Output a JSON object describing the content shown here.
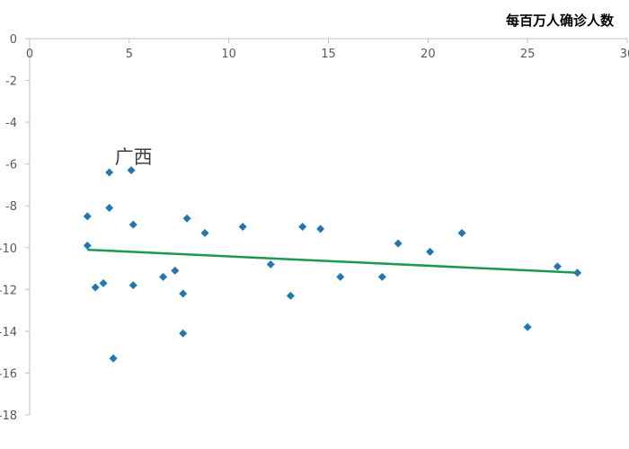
{
  "chart_data": {
    "type": "scatter",
    "xlabel": "每百万人确诊人数",
    "ylabel": "",
    "title": "",
    "xlim": [
      0,
      30
    ],
    "ylim": [
      -18,
      0
    ],
    "x_ticks": [
      "0",
      "5",
      "10",
      "15",
      "20",
      "25",
      "30"
    ],
    "y_ticks": [
      "0",
      "-2",
      "-4",
      "-6",
      "-8",
      "-10",
      "-12",
      "-14",
      "-16",
      "-18"
    ],
    "grid": false,
    "x_axis_position": "top",
    "marker": "diamond",
    "marker_color": "#1f77b4",
    "trendline_color": "#1a9a50",
    "points": [
      {
        "x": 2.9,
        "y": -8.5
      },
      {
        "x": 2.9,
        "y": -9.9
      },
      {
        "x": 3.3,
        "y": -11.9
      },
      {
        "x": 3.7,
        "y": -11.7
      },
      {
        "x": 4.0,
        "y": -6.4
      },
      {
        "x": 4.0,
        "y": -8.1
      },
      {
        "x": 4.2,
        "y": -15.3
      },
      {
        "x": 5.1,
        "y": -6.3
      },
      {
        "x": 5.2,
        "y": -8.9
      },
      {
        "x": 5.2,
        "y": -11.8
      },
      {
        "x": 6.7,
        "y": -11.4
      },
      {
        "x": 7.3,
        "y": -11.1
      },
      {
        "x": 7.7,
        "y": -12.2
      },
      {
        "x": 7.7,
        "y": -14.1
      },
      {
        "x": 7.9,
        "y": -8.6
      },
      {
        "x": 8.8,
        "y": -9.3
      },
      {
        "x": 10.7,
        "y": -9.0
      },
      {
        "x": 12.1,
        "y": -10.8
      },
      {
        "x": 13.1,
        "y": -12.3
      },
      {
        "x": 13.7,
        "y": -9.0
      },
      {
        "x": 14.6,
        "y": -9.1
      },
      {
        "x": 15.6,
        "y": -11.4
      },
      {
        "x": 17.7,
        "y": -11.4
      },
      {
        "x": 18.5,
        "y": -9.8
      },
      {
        "x": 20.1,
        "y": -10.2
      },
      {
        "x": 21.7,
        "y": -9.3
      },
      {
        "x": 25.0,
        "y": -13.8
      },
      {
        "x": 26.5,
        "y": -10.9
      },
      {
        "x": 27.5,
        "y": -11.2
      }
    ],
    "trendline": {
      "x": [
        2.9,
        27.5
      ],
      "y": [
        -10.1,
        -11.2
      ]
    },
    "annotations": [
      {
        "text": "广西",
        "x": 4.0,
        "y": -6.4
      }
    ]
  }
}
